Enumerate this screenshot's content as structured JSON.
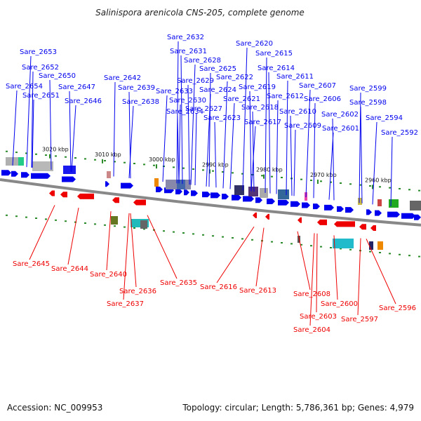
{
  "title": "Salinispora arenicola CNS-205, complete genome",
  "footer": {
    "accession": "Accession: NC_009953",
    "stats": "Topology: circular; Length: 5,786,361 bp; Genes: 4,979"
  },
  "ticks": [
    "3020 kbp",
    "3010 kbp",
    "3000 kbp",
    "2990 kbp",
    "2980 kbp",
    "2970 kbp",
    "2960 kbp"
  ],
  "colors": {
    "forward": "#0000ee",
    "reverse": "#ee0000",
    "backbone": "#888888"
  },
  "top_labels": [
    "Sare_2653",
    "Sare_2652",
    "Sare_2650",
    "Sare_2654",
    "Sare_2651",
    "Sare_2647",
    "Sare_2646",
    "Sare_2642",
    "Sare_2639",
    "Sare_2638",
    "Sare_2632",
    "Sare_2631",
    "Sare_2628",
    "Sare_2625",
    "Sare_2629",
    "Sare_2633",
    "Sare_2630",
    "Sare_2634",
    "Sare_2624",
    "Sare_2627",
    "Sare_2623",
    "Sare_2620",
    "Sare_2615",
    "Sare_2614",
    "Sare_2622",
    "Sare_2611",
    "Sare_2619",
    "Sare_2621",
    "Sare_2612",
    "Sare_2618",
    "Sare_2607",
    "Sare_2606",
    "Sare_2610",
    "Sare_2617",
    "Sare_2609",
    "Sare_2602",
    "Sare_2601",
    "Sare_2599",
    "Sare_2598",
    "Sare_2594",
    "Sare_2592"
  ],
  "bottom_labels": [
    "Sare_2645",
    "Sare_2644",
    "Sare_2640",
    "Sare_2636",
    "Sare_2637",
    "Sare_2635",
    "Sare_2616",
    "Sare_2613",
    "Sare_2608",
    "Sare_2603",
    "Sare_2604",
    "Sare_2600",
    "Sare_2597",
    "Sare_2596"
  ]
}
